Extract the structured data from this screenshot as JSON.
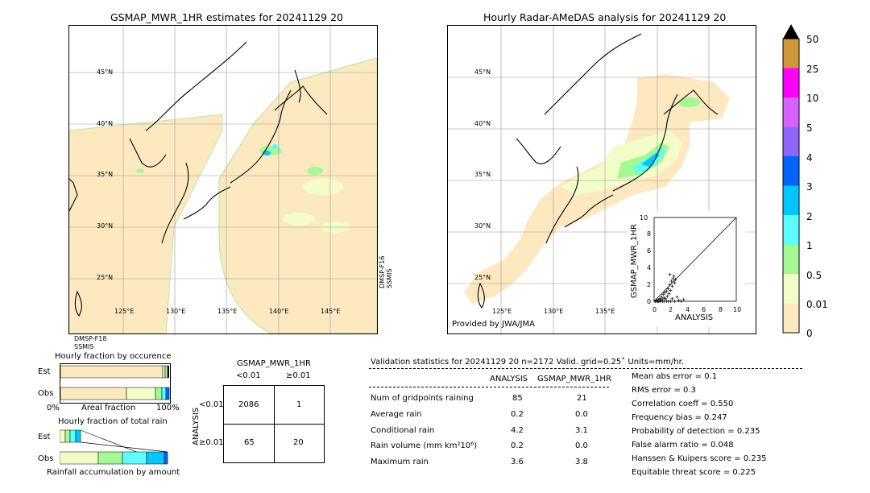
{
  "left_map": {
    "title": "GSMAP_MWR_1HR estimates for 20241129 20",
    "lat_labels": [
      "45°N",
      "40°N",
      "35°N",
      "30°N",
      "25°N"
    ],
    "lon_labels": [
      "125°E",
      "130°E",
      "135°E",
      "140°E",
      "145°E"
    ],
    "sat_bottom": [
      "DMSP-F18",
      "SSMIS"
    ],
    "sat_right": [
      "DMSP-F16",
      "SSMIS"
    ]
  },
  "right_map": {
    "title": "Hourly Radar-AMeDAS analysis for 20241129 20",
    "lat_labels": [
      "45°N",
      "40°N",
      "35°N",
      "30°N",
      "25°N"
    ],
    "lon_labels": [
      "125°E",
      "130°E",
      "135°E"
    ],
    "credit": "Provided by JWA/JMA"
  },
  "colorbar": {
    "levels": [
      "0",
      "0.01",
      "0.5",
      "1",
      "2",
      "3",
      "4",
      "5",
      "10",
      "25",
      "50"
    ],
    "colors": [
      "#fde9c0",
      "#f3fdc9",
      "#a4f993",
      "#5dfdff",
      "#00c8ff",
      "#0064ff",
      "#8f65ff",
      "#d563ff",
      "#ff00ff",
      "#cd9837",
      "#000000"
    ]
  },
  "scatter": {
    "ylabel": "GSMAP_MWR_1HR",
    "xlabel": "ANALYSIS",
    "ticks": [
      "0",
      "2",
      "4",
      "6",
      "8",
      "10"
    ],
    "ytop": "10",
    "range": [
      0,
      10
    ]
  },
  "fraction_occurrence": {
    "title": "Hourly fraction by occurence",
    "row_est": "Est",
    "row_obs": "Obs",
    "axis_left": "0%",
    "axis_mid": "Areal fraction",
    "axis_right": "100%"
  },
  "fraction_total": {
    "title": "Hourly fraction of total rain",
    "row_est": "Est",
    "row_obs": "Obs",
    "axis_mid": "Rainfall accumulation by amount"
  },
  "contingency": {
    "title": "GSMAP_MWR_1HR",
    "col1": "<0.01",
    "col2": "≥0.01",
    "row_axis": "ANALYSIS",
    "row1": "<0.01",
    "row2": "≥0.01",
    "cells": [
      "2086",
      "1",
      "65",
      "20"
    ]
  },
  "validation": {
    "header": "Validation statistics for 20241129 20  n=2172 Valid. grid=0.25˚ Units=mm/hr.",
    "col_analysis": "ANALYSIS",
    "col_gsmap": "GSMAP_MWR_1HR",
    "rows": [
      {
        "label": "Num of gridpoints raining",
        "analysis": "85",
        "gsmap": "21"
      },
      {
        "label": "Average rain",
        "analysis": "0.2",
        "gsmap": "0.0"
      },
      {
        "label": "Conditional rain",
        "analysis": "4.2",
        "gsmap": "3.1"
      },
      {
        "label": "Rain volume (mm km²10⁶)",
        "analysis": "0.2",
        "gsmap": "0.0"
      },
      {
        "label": "Maximum rain",
        "analysis": "3.6",
        "gsmap": "3.8"
      }
    ],
    "scores": [
      "Mean abs error =    0.1",
      "RMS error =    0.3",
      "Correlation coeff =  0.550",
      "Frequency bias =  0.247",
      "Probability of detection =  0.235",
      "False alarm ratio =  0.048",
      "Hanssen & Kuipers score =  0.235",
      "Equitable threat score =  0.225"
    ]
  },
  "chart_data": {
    "type": "scatter",
    "xlabel": "ANALYSIS",
    "ylabel": "GSMAP_MWR_1HR",
    "xlim": [
      0,
      10
    ],
    "ylim": [
      0,
      10
    ],
    "points": [
      [
        0.1,
        0.0
      ],
      [
        0.2,
        0.0
      ],
      [
        0.3,
        0.1
      ],
      [
        0.4,
        0.0
      ],
      [
        0.5,
        0.2
      ],
      [
        0.6,
        0.0
      ],
      [
        0.7,
        0.3
      ],
      [
        0.8,
        0.1
      ],
      [
        0.9,
        0.5
      ],
      [
        1.0,
        0.2
      ],
      [
        1.1,
        0.8
      ],
      [
        1.2,
        0.4
      ],
      [
        1.3,
        1.0
      ],
      [
        1.4,
        0.3
      ],
      [
        1.5,
        1.2
      ],
      [
        1.6,
        0.6
      ],
      [
        1.7,
        1.5
      ],
      [
        1.8,
        0.9
      ],
      [
        1.9,
        2.0
      ],
      [
        2.0,
        1.3
      ],
      [
        2.1,
        2.4
      ],
      [
        2.2,
        1.8
      ],
      [
        2.3,
        2.7
      ],
      [
        2.4,
        3.0
      ],
      [
        2.5,
        2.2
      ],
      [
        1.9,
        3.2
      ],
      [
        2.6,
        2.6
      ],
      [
        0.5,
        0.0
      ],
      [
        1.0,
        0.0
      ],
      [
        1.5,
        0.0
      ],
      [
        2.0,
        0.0
      ],
      [
        2.5,
        0.0
      ],
      [
        3.0,
        0.1
      ],
      [
        3.3,
        0.0
      ],
      [
        3.6,
        0.2
      ],
      [
        0.8,
        0.0
      ],
      [
        1.2,
        0.0
      ],
      [
        1.7,
        0.0
      ],
      [
        2.2,
        0.3
      ],
      [
        2.8,
        0.5
      ]
    ]
  }
}
